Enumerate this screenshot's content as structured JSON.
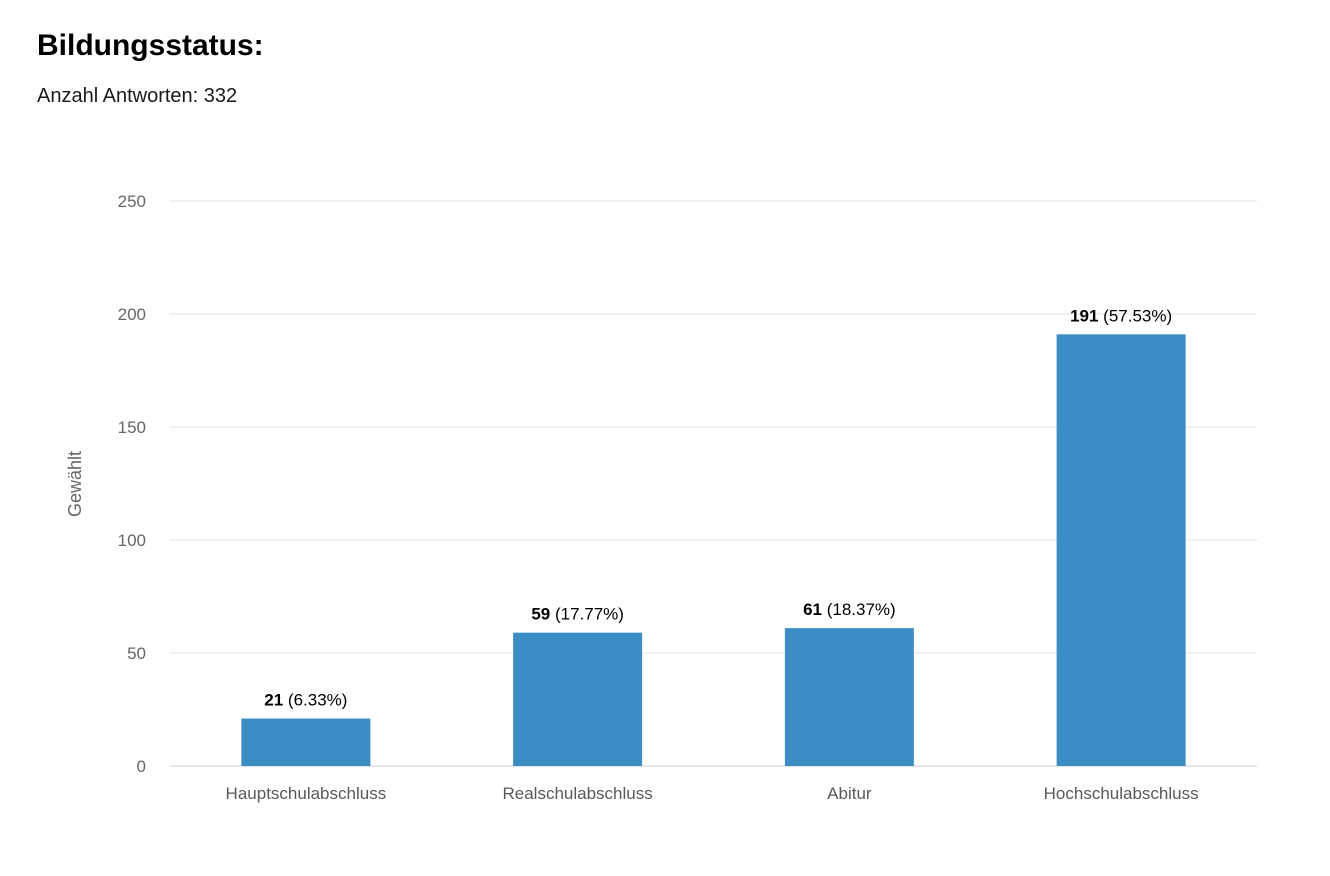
{
  "header": {
    "title": "Bildungsstatus:",
    "subtitle": "Anzahl Antworten: 332"
  },
  "colors": {
    "bar": "#3b8dc4",
    "grid": "#e3e3e3",
    "axis": "#cccccc"
  },
  "chart_data": {
    "type": "bar",
    "categories": [
      "Hauptschulabschluss",
      "Realschulabschluss",
      "Abitur",
      "Hochschulabschluss"
    ],
    "values": [
      21,
      59,
      61,
      191
    ],
    "data_labels": [
      {
        "value": "21",
        "percent": "(6.33%)"
      },
      {
        "value": "59",
        "percent": "(17.77%)"
      },
      {
        "value": "61",
        "percent": "(18.37%)"
      },
      {
        "value": "191",
        "percent": "(57.53%)"
      }
    ],
    "ylabel": "Gewählt",
    "xlabel": "",
    "ylim": [
      0,
      250
    ],
    "yticks": [
      "0",
      "50",
      "100",
      "150",
      "200",
      "250"
    ],
    "grid": true
  }
}
